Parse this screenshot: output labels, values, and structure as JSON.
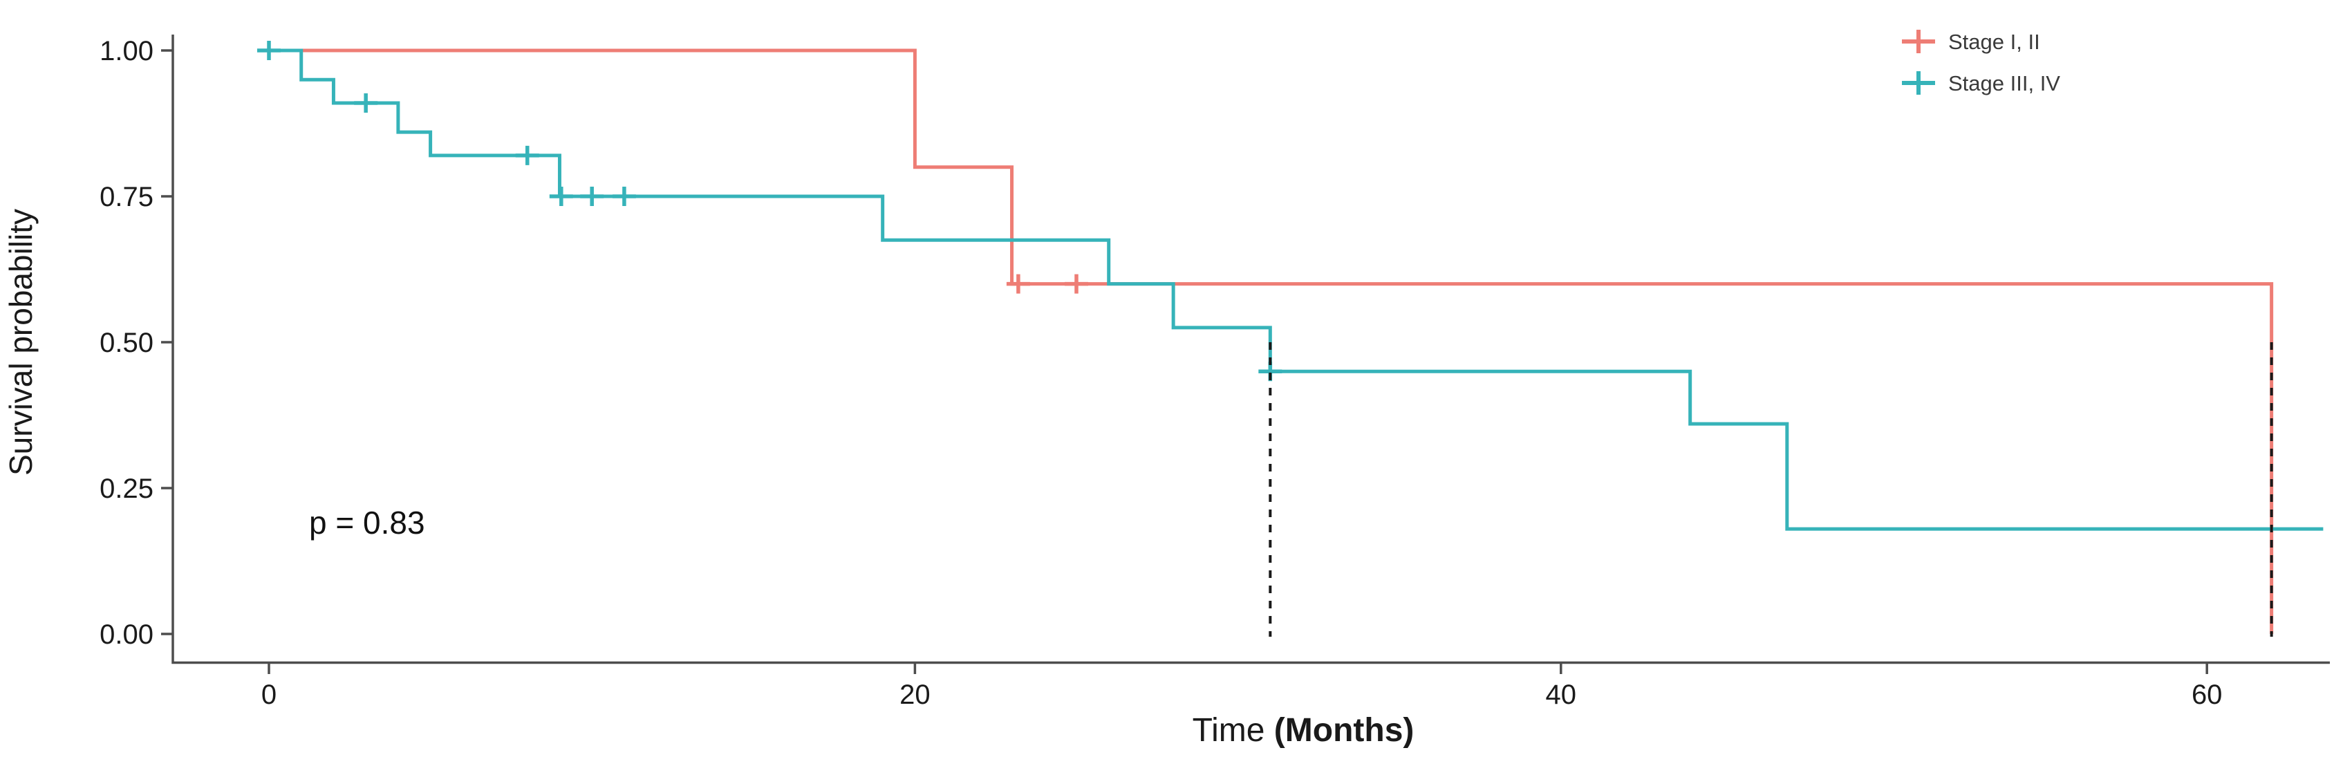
{
  "figure": {
    "background_color": "#ffffff",
    "axis_line_color": "#4d4d4d",
    "text_color": "#1a1a1a",
    "legend_text_color": "#3a3a3a",
    "median_line_color": "#1a1a1a"
  },
  "chart_data": {
    "type": "line",
    "subtype": "kaplan-meier-survival-step",
    "title": "",
    "xlabel": "Time (Months)",
    "xlabel_parts": {
      "normal": "Time",
      "bold": " (Months)"
    },
    "ylabel": "Survival probability",
    "p_value_annotation": "p = 0.83",
    "xlim": [
      0,
      63.6
    ],
    "ylim": [
      0,
      1
    ],
    "grid": false,
    "legend_position": "top-right",
    "x_ticks": [
      {
        "value": 0,
        "label": "0"
      },
      {
        "value": 20,
        "label": "20"
      },
      {
        "value": 40,
        "label": "40"
      },
      {
        "value": 60,
        "label": "60"
      }
    ],
    "y_ticks": [
      {
        "value": 1.0,
        "label": "1.00"
      },
      {
        "value": 0.75,
        "label": "0.75"
      },
      {
        "value": 0.5,
        "label": "0.50"
      },
      {
        "value": 0.25,
        "label": "0.25"
      },
      {
        "value": 0.0,
        "label": "0.00"
      }
    ],
    "series": [
      {
        "name": "Stage I, II",
        "color": "#ee7d75",
        "median_survival_months": 62,
        "end_t": 62,
        "steps": [
          {
            "t": 0,
            "s": 1.0
          },
          {
            "t": 20,
            "s": 0.8
          },
          {
            "t": 23,
            "s": 0.6
          },
          {
            "t": 62,
            "s": 0.0
          }
        ],
        "censor_marks": [
          {
            "t": 23.2,
            "s": 0.6
          },
          {
            "t": 25,
            "s": 0.6
          }
        ]
      },
      {
        "name": "Stage III, IV",
        "color": "#36b3b9",
        "median_survival_months": 31,
        "end_t": 63.6,
        "steps": [
          {
            "t": 0,
            "s": 1.0
          },
          {
            "t": 1,
            "s": 0.95
          },
          {
            "t": 2,
            "s": 0.91
          },
          {
            "t": 4,
            "s": 0.86
          },
          {
            "t": 5,
            "s": 0.82
          },
          {
            "t": 9,
            "s": 0.75
          },
          {
            "t": 19,
            "s": 0.675
          },
          {
            "t": 26,
            "s": 0.6
          },
          {
            "t": 28,
            "s": 0.525
          },
          {
            "t": 31,
            "s": 0.45
          },
          {
            "t": 44,
            "s": 0.36
          },
          {
            "t": 47,
            "s": 0.18
          }
        ],
        "censor_marks": [
          {
            "t": 0,
            "s": 1.0
          },
          {
            "t": 3,
            "s": 0.91
          },
          {
            "t": 8,
            "s": 0.82
          },
          {
            "t": 9.05,
            "s": 0.75
          },
          {
            "t": 10,
            "s": 0.75
          },
          {
            "t": 11,
            "s": 0.75
          },
          {
            "t": 31,
            "s": 0.45
          }
        ]
      }
    ],
    "median_line_style": "dashed-vertical-from-0.5-to-0"
  }
}
